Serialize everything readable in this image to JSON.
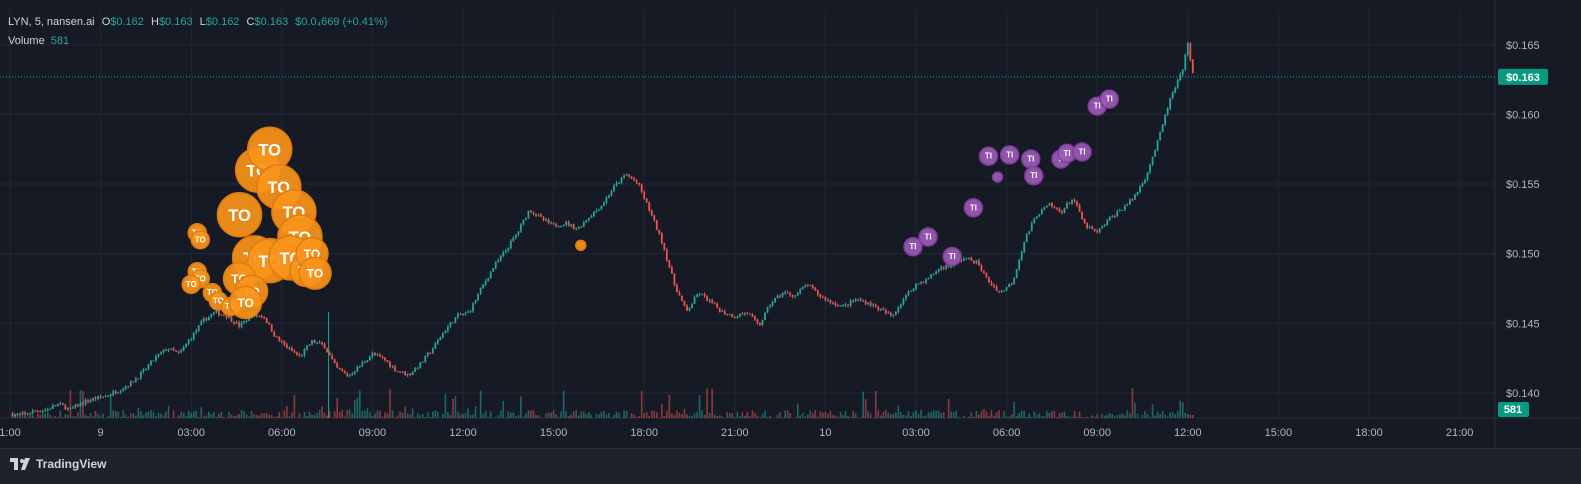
{
  "header": {
    "symbol": "LYN, 5, nansen.ai",
    "o_label": "O",
    "o": "$0.162",
    "h_label": "H",
    "h": "$0.163",
    "l_label": "L",
    "l": "$0.162",
    "c_label": "C",
    "c": "$0.163",
    "change": "$0.0₄669 (+0.41%)"
  },
  "volume_legend": {
    "label": "Volume",
    "value": "581"
  },
  "footer": {
    "brand": "TradingView"
  },
  "colors": {
    "up": "#26a69a",
    "down": "#ef5350",
    "bg": "#161a25",
    "grid": "#232834",
    "text": "#b2b5be",
    "orange_marker": "#f7931a",
    "purple_marker": "#9b59b6"
  },
  "chart_data": {
    "type": "candlestick",
    "interval": "5",
    "y_ticks": [
      "$0.140",
      "$0.145",
      "$0.150",
      "$0.155",
      "$0.160",
      "$0.165"
    ],
    "y_tick_values": [
      0.14,
      0.145,
      0.15,
      0.155,
      0.16,
      0.165
    ],
    "ylim": [
      0.1382,
      0.1675
    ],
    "x_ticks": [
      "1:00",
      "9",
      "03:00",
      "06:00",
      "09:00",
      "12:00",
      "15:00",
      "18:00",
      "21:00",
      "10",
      "03:00",
      "06:00",
      "09:00",
      "12:00",
      "15:00",
      "18:00",
      "21:00"
    ],
    "last_price_label": "$0.163",
    "last_price": 0.1627,
    "volume_label": "581",
    "price_path": [
      [
        0.0,
        0.1385
      ],
      [
        0.4,
        0.1384
      ],
      [
        0.8,
        0.1387
      ],
      [
        1.2,
        0.1388
      ],
      [
        1.6,
        0.1392
      ],
      [
        2.0,
        0.1388
      ],
      [
        2.4,
        0.1393
      ],
      [
        2.8,
        0.1396
      ],
      [
        3.2,
        0.1398
      ],
      [
        3.6,
        0.1402
      ],
      [
        4.0,
        0.1407
      ],
      [
        4.4,
        0.1415
      ],
      [
        4.8,
        0.1425
      ],
      [
        5.2,
        0.1432
      ],
      [
        5.6,
        0.1428
      ],
      [
        6.0,
        0.144
      ],
      [
        6.4,
        0.1452
      ],
      [
        6.8,
        0.1458
      ],
      [
        7.2,
        0.1455
      ],
      [
        7.6,
        0.1448
      ],
      [
        8.0,
        0.1456
      ],
      [
        8.4,
        0.1455
      ],
      [
        8.8,
        0.144
      ],
      [
        9.2,
        0.1432
      ],
      [
        9.6,
        0.1426
      ],
      [
        10.0,
        0.1437
      ],
      [
        10.4,
        0.1434
      ],
      [
        10.8,
        0.1418
      ],
      [
        11.2,
        0.1412
      ],
      [
        11.6,
        0.142
      ],
      [
        12.0,
        0.1428
      ],
      [
        12.4,
        0.1424
      ],
      [
        12.8,
        0.1416
      ],
      [
        13.2,
        0.1413
      ],
      [
        13.6,
        0.1421
      ],
      [
        14.0,
        0.1432
      ],
      [
        14.4,
        0.1445
      ],
      [
        14.8,
        0.1455
      ],
      [
        15.2,
        0.1458
      ],
      [
        15.6,
        0.1475
      ],
      [
        16.0,
        0.149
      ],
      [
        16.4,
        0.1502
      ],
      [
        16.8,
        0.1515
      ],
      [
        17.2,
        0.1532
      ],
      [
        17.6,
        0.1525
      ],
      [
        18.0,
        0.152
      ],
      [
        18.4,
        0.1522
      ],
      [
        18.8,
        0.1518
      ],
      [
        19.2,
        0.1527
      ],
      [
        19.6,
        0.1535
      ],
      [
        20.0,
        0.1548
      ],
      [
        20.4,
        0.1557
      ],
      [
        20.8,
        0.155
      ],
      [
        21.2,
        0.153
      ],
      [
        21.6,
        0.1508
      ],
      [
        22.0,
        0.1478
      ],
      [
        22.4,
        0.1458
      ],
      [
        22.8,
        0.1472
      ],
      [
        23.2,
        0.1465
      ],
      [
        23.6,
        0.1458
      ],
      [
        24.0,
        0.1455
      ],
      [
        24.4,
        0.1458
      ],
      [
        24.8,
        0.1448
      ],
      [
        25.2,
        0.1465
      ],
      [
        25.6,
        0.1472
      ],
      [
        26.0,
        0.147
      ],
      [
        26.4,
        0.1478
      ],
      [
        26.8,
        0.147
      ],
      [
        27.2,
        0.1465
      ],
      [
        27.6,
        0.1462
      ],
      [
        28.0,
        0.1467
      ],
      [
        28.4,
        0.1465
      ],
      [
        28.8,
        0.146
      ],
      [
        29.2,
        0.1455
      ],
      [
        29.6,
        0.1468
      ],
      [
        30.0,
        0.1478
      ],
      [
        30.4,
        0.1482
      ],
      [
        30.8,
        0.149
      ],
      [
        31.2,
        0.1492
      ],
      [
        31.6,
        0.1497
      ],
      [
        32.0,
        0.1494
      ],
      [
        32.4,
        0.148
      ],
      [
        32.8,
        0.1472
      ],
      [
        33.2,
        0.148
      ],
      [
        33.6,
        0.151
      ],
      [
        34.0,
        0.1528
      ],
      [
        34.4,
        0.1535
      ],
      [
        34.8,
        0.153
      ],
      [
        35.2,
        0.154
      ],
      [
        35.6,
        0.152
      ],
      [
        36.0,
        0.1515
      ],
      [
        36.4,
        0.1525
      ],
      [
        36.8,
        0.1532
      ],
      [
        37.2,
        0.154
      ],
      [
        37.6,
        0.1555
      ],
      [
        38.0,
        0.158
      ],
      [
        38.4,
        0.161
      ],
      [
        38.8,
        0.163
      ],
      [
        39.0,
        0.165
      ],
      [
        39.2,
        0.1627
      ]
    ],
    "price_path_x_unit": "hours since first x tick",
    "annotations": [
      {
        "label": "TO",
        "color": "orange",
        "time_h": 8.2,
        "price": 0.156,
        "size": "large"
      },
      {
        "label": "TO",
        "color": "orange",
        "time_h": 8.6,
        "price": 0.1575,
        "size": "large"
      },
      {
        "label": "TO",
        "color": "orange",
        "time_h": 8.9,
        "price": 0.1548,
        "size": "large"
      },
      {
        "label": "TO",
        "color": "orange",
        "time_h": 7.6,
        "price": 0.1528,
        "size": "large"
      },
      {
        "label": "TO",
        "color": "orange",
        "time_h": 9.4,
        "price": 0.153,
        "size": "large"
      },
      {
        "label": "TO",
        "color": "orange",
        "time_h": 9.6,
        "price": 0.1512,
        "size": "large"
      },
      {
        "label": "TO",
        "color": "orange",
        "time_h": 8.1,
        "price": 0.1497,
        "size": "large"
      },
      {
        "label": "TO",
        "color": "orange",
        "time_h": 8.6,
        "price": 0.1495,
        "size": "large"
      },
      {
        "label": "TO",
        "color": "orange",
        "time_h": 9.3,
        "price": 0.1497,
        "size": "large"
      },
      {
        "label": "TO",
        "color": "orange",
        "time_h": 7.6,
        "price": 0.1482,
        "size": "medium"
      },
      {
        "label": "TO",
        "color": "orange",
        "time_h": 8.0,
        "price": 0.1473,
        "size": "medium"
      },
      {
        "label": "TO",
        "color": "orange",
        "time_h": 9.8,
        "price": 0.1488,
        "size": "medium"
      },
      {
        "label": "TO",
        "color": "orange",
        "time_h": 10.0,
        "price": 0.15,
        "size": "medium"
      },
      {
        "label": "TO",
        "color": "orange",
        "time_h": 10.1,
        "price": 0.1486,
        "size": "medium"
      },
      {
        "label": "TO",
        "color": "orange",
        "time_h": 6.2,
        "price": 0.1515,
        "size": "small"
      },
      {
        "label": "TO",
        "color": "orange",
        "time_h": 6.3,
        "price": 0.151,
        "size": "small"
      },
      {
        "label": "TO",
        "color": "orange",
        "time_h": 6.2,
        "price": 0.1487,
        "size": "small"
      },
      {
        "label": "TO",
        "color": "orange",
        "time_h": 6.3,
        "price": 0.1482,
        "size": "small"
      },
      {
        "label": "TO",
        "color": "orange",
        "time_h": 6.0,
        "price": 0.1478,
        "size": "small"
      },
      {
        "label": "TO",
        "color": "orange",
        "time_h": 6.7,
        "price": 0.1472,
        "size": "small"
      },
      {
        "label": "TO",
        "color": "orange",
        "time_h": 6.9,
        "price": 0.1466,
        "size": "small"
      },
      {
        "label": "TO",
        "color": "orange",
        "time_h": 7.3,
        "price": 0.1462,
        "size": "small"
      },
      {
        "label": "TO",
        "color": "orange",
        "time_h": 7.8,
        "price": 0.1465,
        "size": "medium"
      },
      {
        "label": "",
        "color": "orange",
        "time_h": 18.9,
        "price": 0.1506,
        "size": "dot"
      },
      {
        "label": "TI",
        "color": "purple",
        "time_h": 29.9,
        "price": 0.1505,
        "size": "small"
      },
      {
        "label": "TI",
        "color": "purple",
        "time_h": 30.4,
        "price": 0.1512,
        "size": "small"
      },
      {
        "label": "TI",
        "color": "purple",
        "time_h": 31.2,
        "price": 0.1498,
        "size": "small"
      },
      {
        "label": "TI",
        "color": "purple",
        "time_h": 31.9,
        "price": 0.1533,
        "size": "small"
      },
      {
        "label": "TI",
        "color": "purple",
        "time_h": 32.4,
        "price": 0.157,
        "size": "small"
      },
      {
        "label": "TI",
        "color": "purple",
        "time_h": 33.1,
        "price": 0.1571,
        "size": "small"
      },
      {
        "label": "",
        "color": "purple",
        "time_h": 32.7,
        "price": 0.1555,
        "size": "dot"
      },
      {
        "label": "TI",
        "color": "purple",
        "time_h": 33.8,
        "price": 0.1568,
        "size": "small"
      },
      {
        "label": "TI",
        "color": "purple",
        "time_h": 33.9,
        "price": 0.1556,
        "size": "small"
      },
      {
        "label": "TI",
        "color": "purple",
        "time_h": 34.8,
        "price": 0.1568,
        "size": "small"
      },
      {
        "label": "TI",
        "color": "purple",
        "time_h": 35.0,
        "price": 0.1572,
        "size": "small"
      },
      {
        "label": "TI",
        "color": "purple",
        "time_h": 35.5,
        "price": 0.1573,
        "size": "small"
      },
      {
        "label": "TI",
        "color": "purple",
        "time_h": 36.0,
        "price": 0.1606,
        "size": "small"
      },
      {
        "label": "TI",
        "color": "purple",
        "time_h": 36.4,
        "price": 0.1611,
        "size": "small"
      }
    ]
  }
}
